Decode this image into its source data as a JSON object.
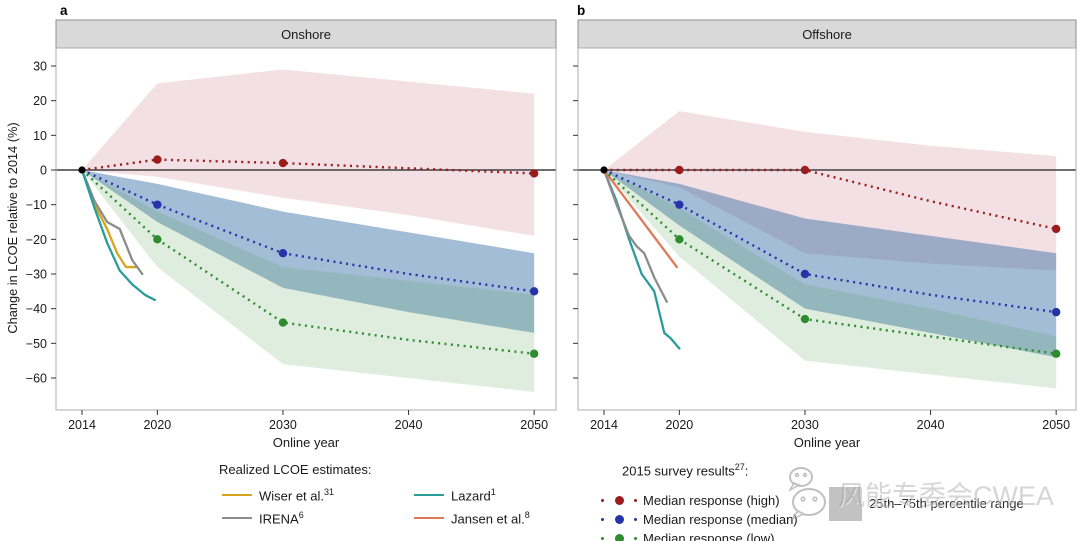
{
  "figure": {
    "panel_a_label": "a",
    "panel_b_label": "b",
    "ylabel": "Change in LCOE relative to 2014 (%)",
    "xlabel": "Online year",
    "xticks": [
      2014,
      2020,
      2030,
      2040,
      2050
    ],
    "yticks": [
      30,
      20,
      10,
      0,
      -10,
      -20,
      -30,
      -40,
      -50,
      -60
    ]
  },
  "chart_data": [
    {
      "panel": "a",
      "title": "Onshore",
      "type": "line",
      "xlabel": "Online year",
      "ylabel": "Change in LCOE relative to 2014 (%)",
      "x_range": [
        2012,
        2050.5
      ],
      "y_range": [
        -69,
        35
      ],
      "grid": false,
      "marker_years": [
        2020,
        2030,
        2050
      ],
      "baseline_point": {
        "x": 2014,
        "y": 0,
        "color": "#000000"
      },
      "survey_series": [
        {
          "name": "Median response (high)",
          "color": "#9a1c1c",
          "band_fill": "#c87382",
          "band_opacity": 0.22,
          "band_name": "25th-75th percentile range (high)",
          "x": [
            2014,
            2020,
            2030,
            2040,
            2050
          ],
          "y": [
            0,
            3,
            2,
            0.5,
            -1
          ],
          "band_top": [
            0,
            25,
            29,
            25.5,
            22
          ],
          "band_bottom": [
            0,
            -2,
            -8,
            -13,
            -19
          ]
        },
        {
          "name": "Median response (median)",
          "color": "#2632a8",
          "band_fill": "#105193",
          "band_opacity": 0.38,
          "band_name": "25th-75th percentile range (median)",
          "x": [
            2014,
            2020,
            2030,
            2040,
            2050
          ],
          "y": [
            0,
            -10,
            -24,
            -30,
            -35
          ],
          "band_top": [
            0,
            -4,
            -12,
            -18,
            -24
          ],
          "band_bottom": [
            0,
            -15,
            -34,
            -41,
            -47
          ]
        },
        {
          "name": "Median response (low)",
          "color": "#2e8b2e",
          "band_fill": "#509950",
          "band_opacity": 0.18,
          "band_name": "25th-75th percentile range (low)",
          "x": [
            2014,
            2020,
            2030,
            2040,
            2050
          ],
          "y": [
            0,
            -20,
            -44,
            -49,
            -53
          ],
          "band_top": [
            0,
            -12,
            -28,
            -32,
            -36
          ],
          "band_bottom": [
            0,
            -28,
            -56,
            -60,
            -64
          ]
        }
      ],
      "realized_series": [
        {
          "name": "Wiser et al.",
          "color": "#d6a51f",
          "x": [
            2014,
            2015,
            2016,
            2016.8,
            2017.5,
            2018.3
          ],
          "y": [
            0,
            -10,
            -17,
            -24,
            -28,
            -28
          ]
        },
        {
          "name": "IRENA",
          "color": "#8c8c8c",
          "x": [
            2014,
            2015,
            2016,
            2017,
            2018,
            2018.8
          ],
          "y": [
            0,
            -9,
            -15,
            -17,
            -26,
            -30
          ]
        },
        {
          "name": "Lazard",
          "color": "#2a9d9b",
          "x": [
            2014,
            2015,
            2016,
            2017,
            2018,
            2019,
            2019.8
          ],
          "y": [
            0,
            -11,
            -21,
            -29,
            -33,
            -36,
            -37.5
          ]
        }
      ]
    },
    {
      "panel": "b",
      "title": "Offshore",
      "type": "line",
      "xlabel": "Online year",
      "ylabel": "Change in LCOE relative to 2014 (%)",
      "x_range": [
        2012,
        2051.5
      ],
      "y_range": [
        -69,
        35
      ],
      "grid": false,
      "marker_years": [
        2020,
        2030,
        2050
      ],
      "baseline_point": {
        "x": 2014,
        "y": 0,
        "color": "#000000"
      },
      "survey_series": [
        {
          "name": "Median response (high)",
          "color": "#9a1c1c",
          "band_fill": "#c87382",
          "band_opacity": 0.22,
          "band_name": "25th-75th percentile range (high)",
          "x": [
            2014,
            2020,
            2030,
            2040,
            2050
          ],
          "y": [
            0,
            0,
            0,
            -9,
            -17
          ],
          "band_top": [
            0,
            17,
            11,
            7,
            4
          ],
          "band_bottom": [
            0,
            -5,
            -24,
            -27,
            -29
          ]
        },
        {
          "name": "Median response (median)",
          "color": "#2632a8",
          "band_fill": "#105193",
          "band_opacity": 0.38,
          "band_name": "25th-75th percentile range (median)",
          "x": [
            2014,
            2020,
            2030,
            2040,
            2050
          ],
          "y": [
            0,
            -10,
            -30,
            -36,
            -41
          ],
          "band_top": [
            0,
            -4,
            -14,
            -19,
            -24
          ],
          "band_bottom": [
            0,
            -16,
            -40,
            -47,
            -54
          ]
        },
        {
          "name": "Median response (low)",
          "color": "#2e8b2e",
          "band_fill": "#509950",
          "band_opacity": 0.18,
          "band_name": "25th-75th percentile range (low)",
          "x": [
            2014,
            2020,
            2030,
            2040,
            2050
          ],
          "y": [
            0,
            -20,
            -43,
            -48,
            -53
          ],
          "band_top": [
            0,
            -11,
            -33,
            -40,
            -48
          ],
          "band_bottom": [
            0,
            -25,
            -55,
            -59,
            -63
          ]
        }
      ],
      "realized_series": [
        {
          "name": "Lazard",
          "color": "#2a9d9b",
          "x": [
            2014,
            2015,
            2016,
            2017,
            2017.7,
            2018,
            2018.8,
            2019.3,
            2020
          ],
          "y": [
            0,
            -9,
            -20,
            -30,
            -33.5,
            -35,
            -47,
            -48.5,
            -51.5
          ]
        },
        {
          "name": "IRENA",
          "color": "#8c8c8c",
          "x": [
            2014,
            2015,
            2016,
            2016.6,
            2017.2,
            2018,
            2019
          ],
          "y": [
            0,
            -10,
            -19,
            -22,
            -24,
            -31,
            -38
          ]
        },
        {
          "name": "Jansen et al.",
          "color": "#e0795a",
          "x": [
            2014,
            2019.8
          ],
          "y": [
            0,
            -28
          ]
        }
      ]
    }
  ],
  "legend_left": {
    "title": "Realized LCOE estimates:",
    "items": [
      {
        "label": "Wiser et al.",
        "sup": "31",
        "color": "#d6a51f"
      },
      {
        "label": "IRENA",
        "sup": "6",
        "color": "#8c8c8c"
      },
      {
        "label": "Lazard",
        "sup": "1",
        "color": "#2a9d9b"
      },
      {
        "label": "Jansen et al.",
        "sup": "8",
        "color": "#e0795a"
      }
    ]
  },
  "legend_right": {
    "title_prefix": "2015 survey results",
    "title_sup": "27",
    "title_suffix": ":",
    "items": [
      {
        "label": "Median response (high)",
        "color": "#9a1c1c"
      },
      {
        "label": "Median response (median)",
        "color": "#2632a8"
      },
      {
        "label": "Median response (low)",
        "color": "#2e8b2e"
      }
    ]
  },
  "legend_percentile": {
    "label": "25th–75th percentile range",
    "swatch_color": "#c2c2c2"
  },
  "watermark": {
    "text": "风能专委会CWEA",
    "icon": "wechat-icon"
  },
  "colors": {
    "strip_fill": "#d9d9d9",
    "strip_border": "#8f8f8f",
    "plot_border": "#adadad",
    "zero_line": "#3f3f3f",
    "background": "#ffffff"
  }
}
